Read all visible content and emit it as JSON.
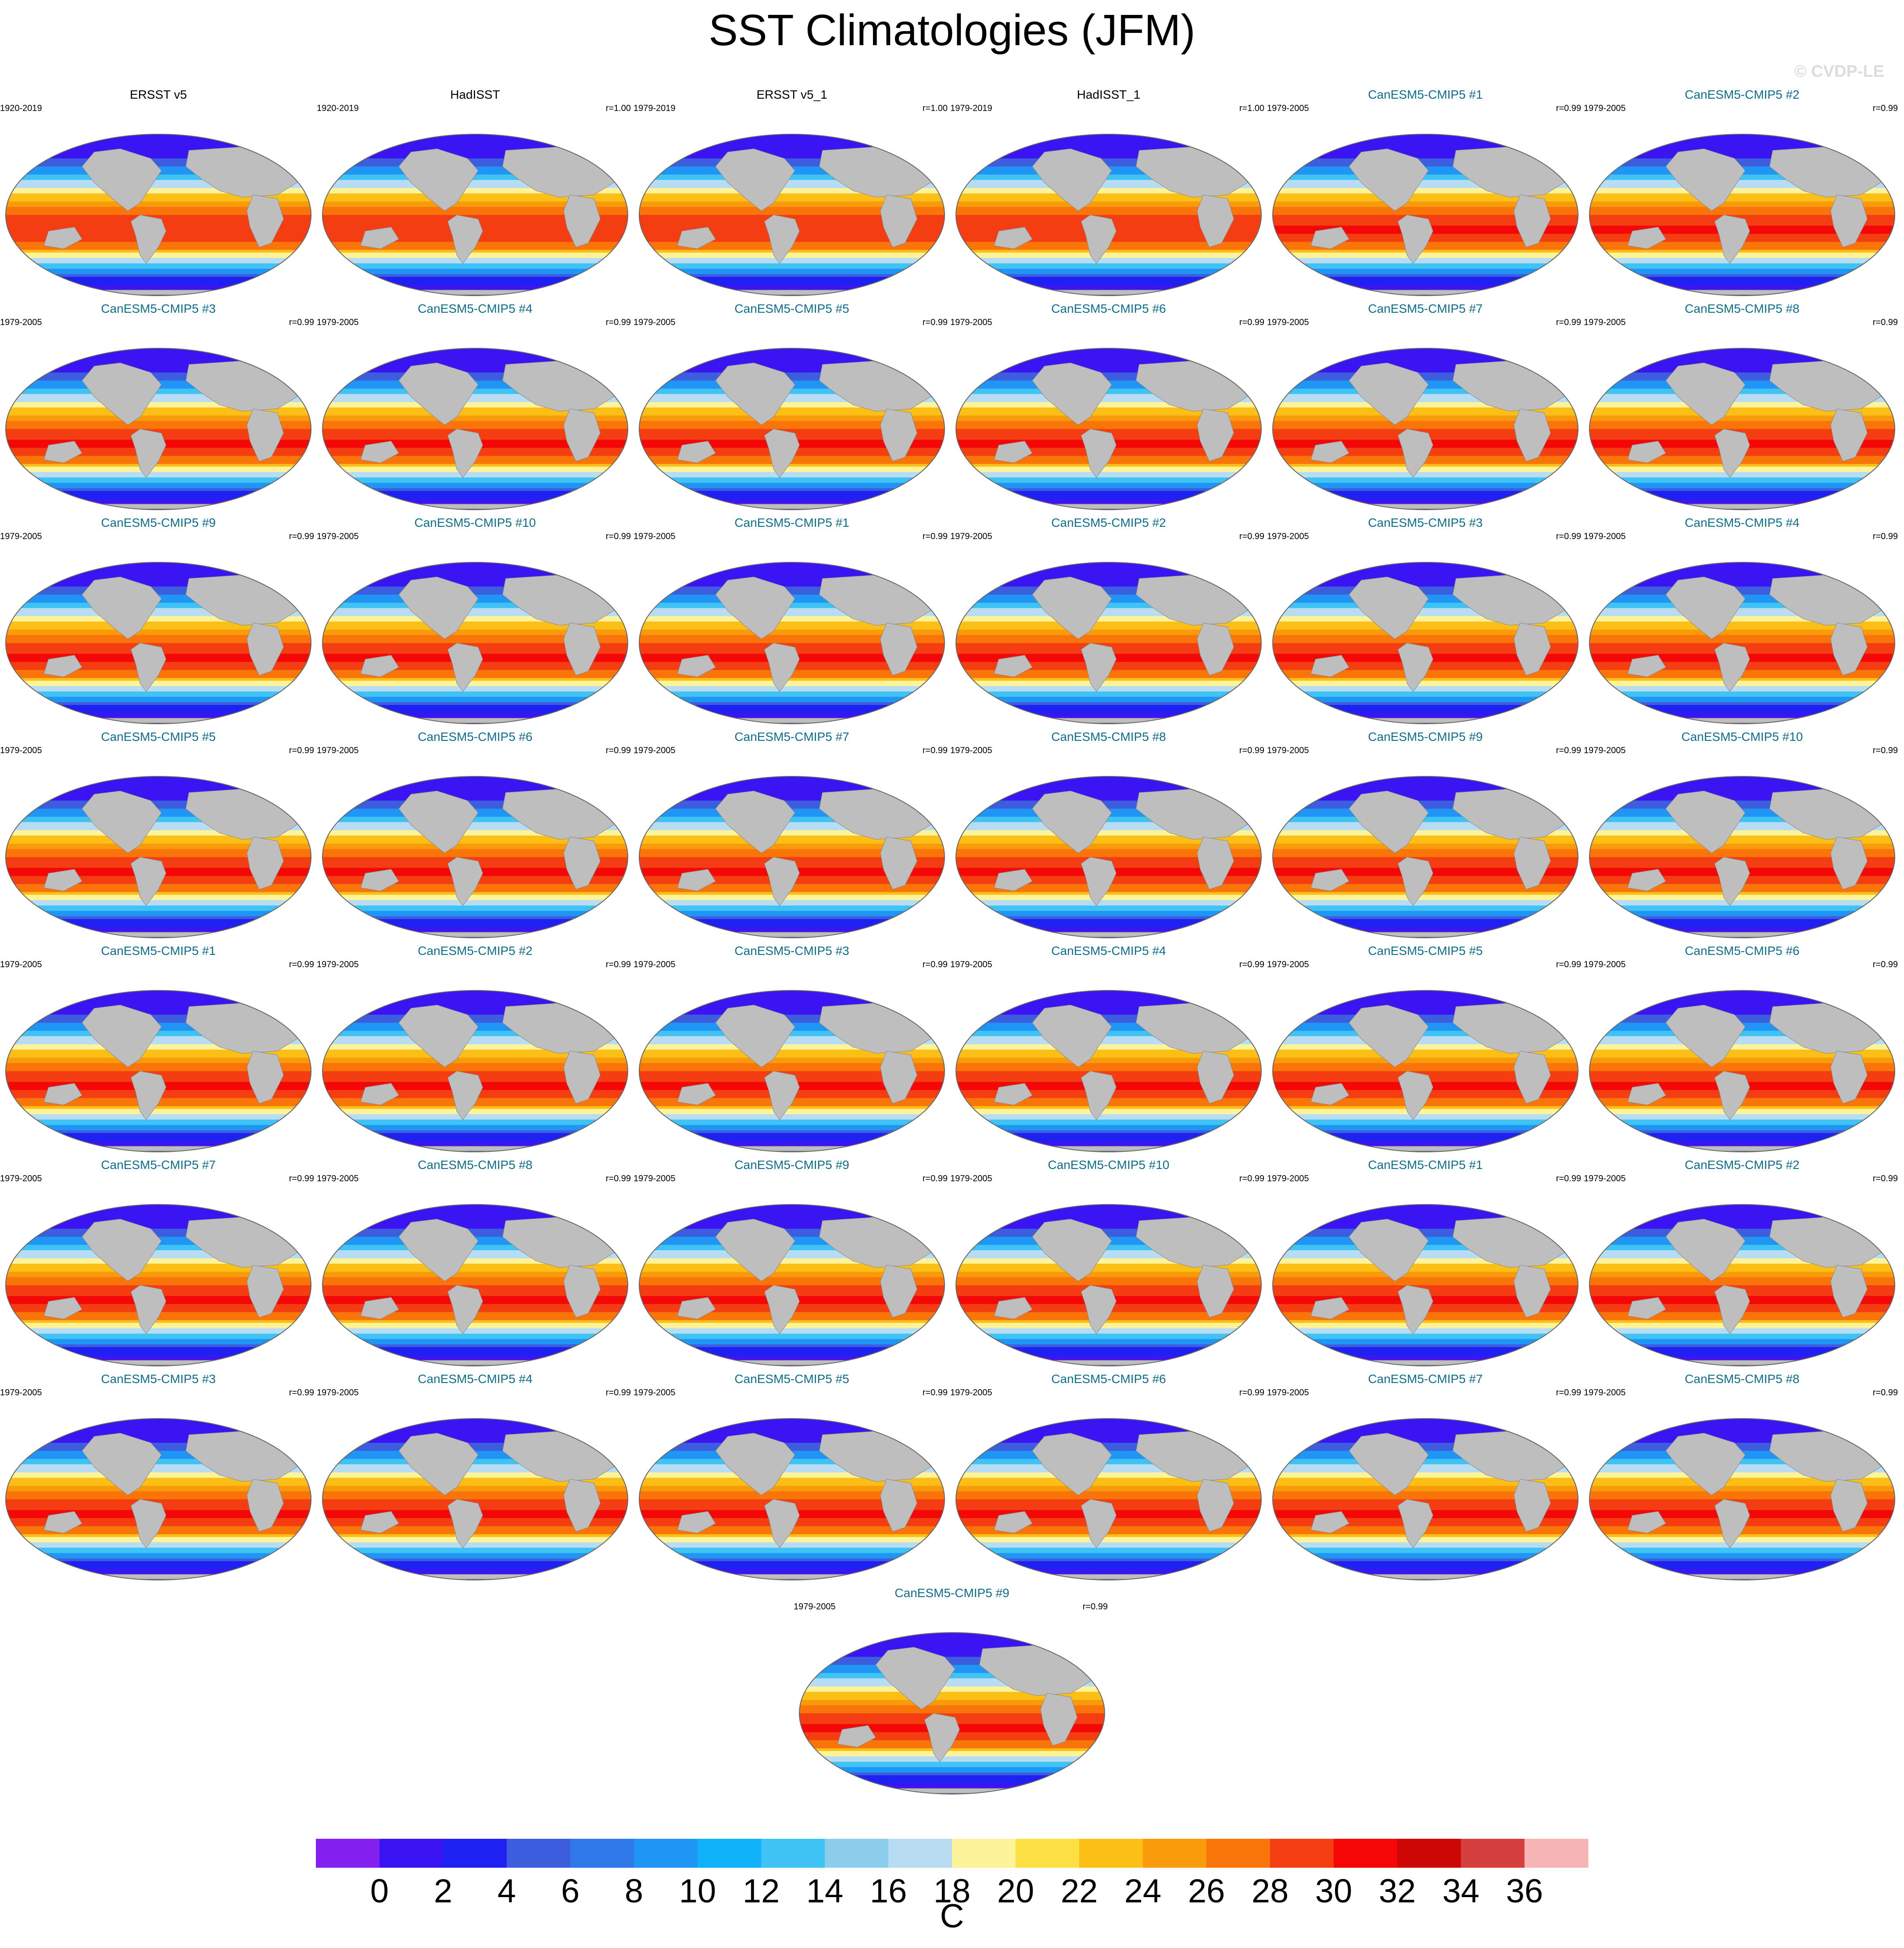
{
  "figure_title": "SST Climatologies (JFM)",
  "watermark": "© CVDP-LE",
  "chart_data": {
    "type": "heatmap",
    "title": "SST Climatologies (JFM)",
    "projection": "global map, one panel per dataset",
    "units": "C",
    "colorbar": {
      "label": "C",
      "levels": [
        -1,
        0,
        1,
        2,
        3,
        4,
        5,
        6,
        7,
        8,
        9,
        10,
        11,
        12,
        13,
        14,
        15,
        16,
        17,
        18,
        19,
        20,
        21,
        22,
        23,
        24,
        25,
        26,
        27,
        28,
        29,
        30,
        31,
        32,
        33,
        34,
        35,
        36,
        37
      ],
      "tick_labels": [
        "0",
        "2",
        "4",
        "6",
        "8",
        "10",
        "12",
        "14",
        "16",
        "18",
        "20",
        "22",
        "24",
        "26",
        "28",
        "30",
        "32",
        "34",
        "36"
      ],
      "colors": [
        "#8421f0",
        "#3b14f4",
        "#1d22f2",
        "#3d5ddf",
        "#2f78ea",
        "#1f95f5",
        "#0fb1f8",
        "#3fc3f4",
        "#8dcdec",
        "#b8ddf3",
        "#fdf39a",
        "#fde044",
        "#fbbf16",
        "#f99b0b",
        "#f9750a",
        "#f53d12",
        "#f50707",
        "#cd0606",
        "#d53f3d",
        "#f7b4b4"
      ]
    },
    "panels": [
      {
        "name": "ERSST v5",
        "period": "1920-2019",
        "r": "",
        "type": "obs"
      },
      {
        "name": "HadISST",
        "period": "1920-2019",
        "r": "r=1.00",
        "type": "obs"
      },
      {
        "name": "ERSST v5_1",
        "period": "1979-2019",
        "r": "r=1.00",
        "type": "obs"
      },
      {
        "name": "HadISST_1",
        "period": "1979-2019",
        "r": "r=1.00",
        "type": "obs"
      },
      {
        "name": "CanESM5-CMIP5 #1",
        "period": "1979-2005",
        "r": "r=0.99",
        "type": "model"
      },
      {
        "name": "CanESM5-CMIP5 #2",
        "period": "1979-2005",
        "r": "r=0.99",
        "type": "model"
      },
      {
        "name": "CanESM5-CMIP5 #3",
        "period": "1979-2005",
        "r": "r=0.99",
        "type": "model"
      },
      {
        "name": "CanESM5-CMIP5 #4",
        "period": "1979-2005",
        "r": "r=0.99",
        "type": "model"
      },
      {
        "name": "CanESM5-CMIP5 #5",
        "period": "1979-2005",
        "r": "r=0.99",
        "type": "model"
      },
      {
        "name": "CanESM5-CMIP5 #6",
        "period": "1979-2005",
        "r": "r=0.99",
        "type": "model"
      },
      {
        "name": "CanESM5-CMIP5 #7",
        "period": "1979-2005",
        "r": "r=0.99",
        "type": "model"
      },
      {
        "name": "CanESM5-CMIP5 #8",
        "period": "1979-2005",
        "r": "r=0.99",
        "type": "model"
      },
      {
        "name": "CanESM5-CMIP5 #9",
        "period": "1979-2005",
        "r": "r=0.99",
        "type": "model"
      },
      {
        "name": "CanESM5-CMIP5 #10",
        "period": "1979-2005",
        "r": "r=0.99",
        "type": "model"
      },
      {
        "name": "CanESM5-CMIP5 #1",
        "period": "1979-2005",
        "r": "r=0.99",
        "type": "model"
      },
      {
        "name": "CanESM5-CMIP5 #2",
        "period": "1979-2005",
        "r": "r=0.99",
        "type": "model"
      },
      {
        "name": "CanESM5-CMIP5 #3",
        "period": "1979-2005",
        "r": "r=0.99",
        "type": "model"
      },
      {
        "name": "CanESM5-CMIP5 #4",
        "period": "1979-2005",
        "r": "r=0.99",
        "type": "model"
      },
      {
        "name": "CanESM5-CMIP5 #5",
        "period": "1979-2005",
        "r": "r=0.99",
        "type": "model"
      },
      {
        "name": "CanESM5-CMIP5 #6",
        "period": "1979-2005",
        "r": "r=0.99",
        "type": "model"
      },
      {
        "name": "CanESM5-CMIP5 #7",
        "period": "1979-2005",
        "r": "r=0.99",
        "type": "model"
      },
      {
        "name": "CanESM5-CMIP5 #8",
        "period": "1979-2005",
        "r": "r=0.99",
        "type": "model"
      },
      {
        "name": "CanESM5-CMIP5 #9",
        "period": "1979-2005",
        "r": "r=0.99",
        "type": "model"
      },
      {
        "name": "CanESM5-CMIP5 #10",
        "period": "1979-2005",
        "r": "r=0.99",
        "type": "model"
      },
      {
        "name": "CanESM5-CMIP5 #1",
        "period": "1979-2005",
        "r": "r=0.99",
        "type": "model"
      },
      {
        "name": "CanESM5-CMIP5 #2",
        "period": "1979-2005",
        "r": "r=0.99",
        "type": "model"
      },
      {
        "name": "CanESM5-CMIP5 #3",
        "period": "1979-2005",
        "r": "r=0.99",
        "type": "model"
      },
      {
        "name": "CanESM5-CMIP5 #4",
        "period": "1979-2005",
        "r": "r=0.99",
        "type": "model"
      },
      {
        "name": "CanESM5-CMIP5 #5",
        "period": "1979-2005",
        "r": "r=0.99",
        "type": "model"
      },
      {
        "name": "CanESM5-CMIP5 #6",
        "period": "1979-2005",
        "r": "r=0.99",
        "type": "model"
      },
      {
        "name": "CanESM5-CMIP5 #7",
        "period": "1979-2005",
        "r": "r=0.99",
        "type": "model"
      },
      {
        "name": "CanESM5-CMIP5 #8",
        "period": "1979-2005",
        "r": "r=0.99",
        "type": "model"
      },
      {
        "name": "CanESM5-CMIP5 #9",
        "period": "1979-2005",
        "r": "r=0.99",
        "type": "model"
      },
      {
        "name": "CanESM5-CMIP5 #10",
        "period": "1979-2005",
        "r": "r=0.99",
        "type": "model"
      },
      {
        "name": "CanESM5-CMIP5 #1",
        "period": "1979-2005",
        "r": "r=0.99",
        "type": "model"
      },
      {
        "name": "CanESM5-CMIP5 #2",
        "period": "1979-2005",
        "r": "r=0.99",
        "type": "model"
      },
      {
        "name": "CanESM5-CMIP5 #3",
        "period": "1979-2005",
        "r": "r=0.99",
        "type": "model"
      },
      {
        "name": "CanESM5-CMIP5 #4",
        "period": "1979-2005",
        "r": "r=0.99",
        "type": "model"
      },
      {
        "name": "CanESM5-CMIP5 #5",
        "period": "1979-2005",
        "r": "r=0.99",
        "type": "model"
      },
      {
        "name": "CanESM5-CMIP5 #6",
        "period": "1979-2005",
        "r": "r=0.99",
        "type": "model"
      },
      {
        "name": "CanESM5-CMIP5 #7",
        "period": "1979-2005",
        "r": "r=0.99",
        "type": "model"
      },
      {
        "name": "CanESM5-CMIP5 #8",
        "period": "1979-2005",
        "r": "r=0.99",
        "type": "model"
      },
      {
        "name": "CanESM5-CMIP5 #9",
        "period": "1979-2005",
        "r": "r=0.99",
        "type": "model"
      }
    ]
  },
  "colors": {
    "obs_title": "#000000",
    "model_title": "#0c6e8c",
    "land": "#bebebe",
    "map_outline": "#666666"
  }
}
